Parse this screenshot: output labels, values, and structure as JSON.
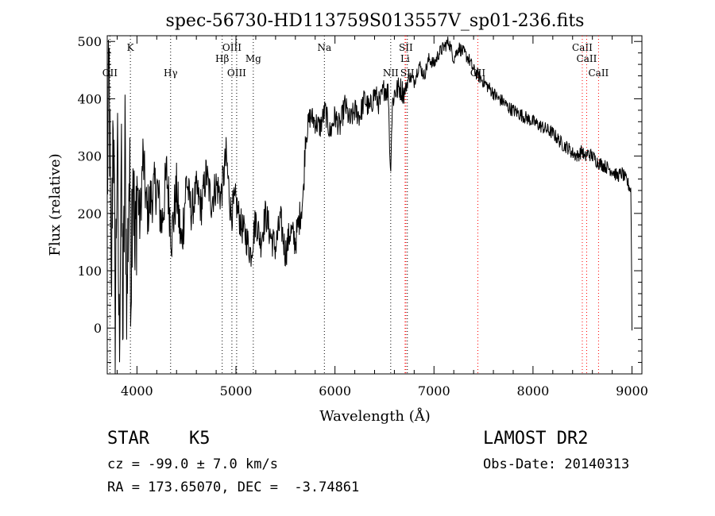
{
  "chart_data": {
    "type": "line",
    "title": "spec-56730-HD113759S013557V_sp01-236.fits",
    "xlabel": "Wavelength (Å)",
    "ylabel": "Flux (relative)",
    "xlim": [
      3700,
      9100
    ],
    "ylim": [
      -80,
      510
    ],
    "xticks": [
      4000,
      5000,
      6000,
      7000,
      8000,
      9000
    ],
    "yticks": [
      0,
      100,
      200,
      300,
      400,
      500
    ],
    "grid": false,
    "line_color": "#000000",
    "series": [
      {
        "x": [
          3700,
          3720,
          3740,
          3760,
          3780,
          3800,
          3820,
          3840,
          3860,
          3880,
          3900,
          3920,
          3940,
          3960,
          3980,
          4000,
          4030,
          4060,
          4100,
          4150,
          4200,
          4250,
          4300,
          4350,
          4400,
          4450,
          4500,
          4550,
          4600,
          4650,
          4700,
          4750,
          4800,
          4850,
          4900,
          4950,
          5000,
          5050,
          5100,
          5150,
          5200,
          5250,
          5300,
          5350,
          5400,
          5450,
          5500,
          5550,
          5600,
          5650,
          5680,
          5700,
          5750,
          5800,
          5850,
          5900,
          5950,
          6000,
          6050,
          6100,
          6150,
          6200,
          6250,
          6300,
          6350,
          6400,
          6450,
          6500,
          6540,
          6560,
          6580,
          6600,
          6650,
          6700,
          6750,
          6800,
          6850,
          6900,
          6950,
          7000,
          7050,
          7100,
          7150,
          7200,
          7250,
          7300,
          7350,
          7400,
          7450,
          7500,
          7550,
          7600,
          7650,
          7700,
          7750,
          7800,
          7850,
          7900,
          7950,
          8000,
          8050,
          8100,
          8150,
          8200,
          8250,
          8300,
          8350,
          8400,
          8450,
          8500,
          8520,
          8550,
          8600,
          8650,
          8700,
          8750,
          8800,
          8850,
          8900,
          8950,
          8990,
          9000
        ],
        "y": [
          250,
          440,
          20,
          420,
          -10,
          330,
          -30,
          280,
          0,
          310,
          40,
          280,
          100,
          340,
          90,
          260,
          180,
          300,
          200,
          230,
          250,
          180,
          270,
          160,
          240,
          140,
          260,
          200,
          240,
          210,
          270,
          220,
          250,
          230,
          300,
          200,
          220,
          180,
          160,
          130,
          190,
          150,
          200,
          160,
          140,
          190,
          130,
          170,
          150,
          200,
          230,
          330,
          370,
          360,
          350,
          380,
          340,
          370,
          350,
          390,
          360,
          380,
          370,
          400,
          380,
          410,
          390,
          420,
          410,
          270,
          390,
          410,
          420,
          410,
          440,
          430,
          460,
          440,
          470,
          460,
          480,
          490,
          500,
          470,
          490,
          480,
          470,
          450,
          440,
          430,
          420,
          410,
          400,
          395,
          385,
          380,
          375,
          370,
          365,
          360,
          355,
          350,
          345,
          340,
          330,
          320,
          315,
          305,
          300,
          310,
          295,
          305,
          300,
          290,
          285,
          280,
          275,
          265,
          270,
          255,
          240,
          0
        ]
      }
    ],
    "annotations": {
      "lines": [
        {
          "x": 3727,
          "label": "OII",
          "color": "#000000"
        },
        {
          "x": 3934,
          "label": "K",
          "color": "#000000"
        },
        {
          "x": 4340,
          "label": "Hγ",
          "color": "#000000"
        },
        {
          "x": 4861,
          "label": "Hβ",
          "color": "#000000"
        },
        {
          "x": 4959,
          "label": "OIII",
          "color": "#000000"
        },
        {
          "x": 5007,
          "label": "OIII",
          "color": "#000000"
        },
        {
          "x": 5175,
          "label": "Mg",
          "color": "#000000"
        },
        {
          "x": 5893,
          "label": "Na",
          "color": "#000000"
        },
        {
          "x": 6563,
          "label": "NII",
          "color": "#000000"
        },
        {
          "x": 6708,
          "label": "Li",
          "color": "#ff0000"
        },
        {
          "x": 6716,
          "label": "SII",
          "color": "#ff0000"
        },
        {
          "x": 6731,
          "label": "SII",
          "color": "#000000"
        },
        {
          "x": 7443,
          "label": "OII",
          "color": "#ff0000"
        },
        {
          "x": 8498,
          "label": "CaII",
          "color": "#ff0000"
        },
        {
          "x": 8542,
          "label": "CaII",
          "color": "#ff0000"
        },
        {
          "x": 8662,
          "label": "CaII",
          "color": "#ff0000"
        }
      ]
    }
  },
  "info": {
    "class_label": "STAR",
    "subclass_label": "K5",
    "survey": "LAMOST DR2",
    "cz": "cz = -99.0 ± 7.0 km/s",
    "obs_date": "Obs-Date: 20140313",
    "coords": "RA = 173.65070, DEC =  -3.74861"
  }
}
